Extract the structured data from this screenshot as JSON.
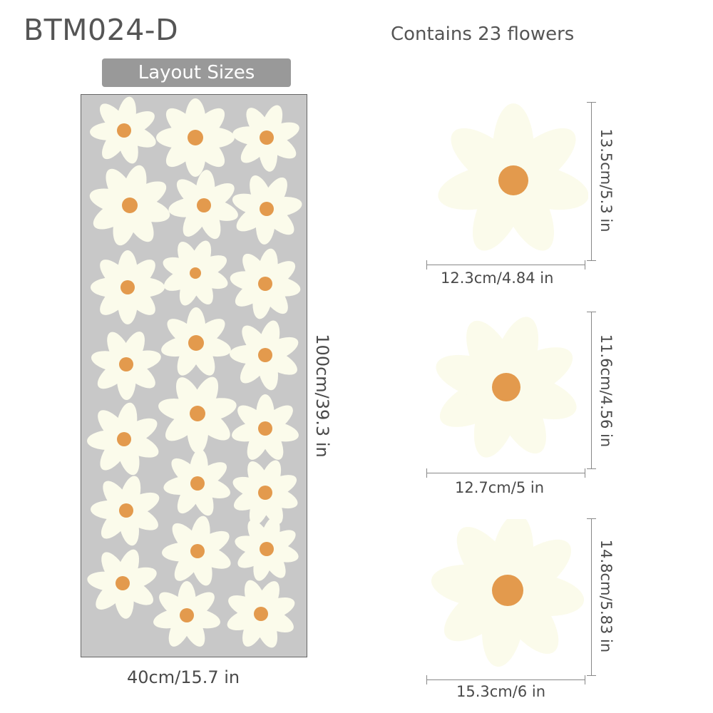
{
  "product_code": "BTM024-D",
  "flower_count_text": "Contains 23 flowers",
  "layout_banner": "Layout Sizes",
  "sheet": {
    "width_label": "40cm/15.7 in",
    "height_label": "100cm/39.3 in"
  },
  "flowers": [
    {
      "width_label": "12.3cm/4.84 in",
      "height_label": "13.5cm/5.3 in"
    },
    {
      "width_label": "12.7cm/5 in",
      "height_label": "11.6cm/4.56 in"
    },
    {
      "width_label": "15.3cm/6 in",
      "height_label": "14.8cm/5.83 in"
    }
  ],
  "colors": {
    "petal": "#fbfbeb",
    "center": "#e39a4d",
    "sheet": "#c8c8c8",
    "banner": "#999999"
  }
}
